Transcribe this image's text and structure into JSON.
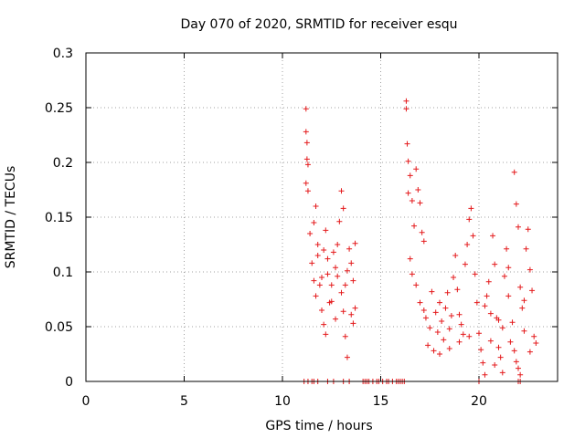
{
  "chart_data": {
    "type": "scatter",
    "title": "Day 070 of 2020, SRMTID for receiver esqu",
    "xlabel": "GPS time / hours",
    "ylabel": "SRMTID / TECUs",
    "xlim": [
      0,
      24
    ],
    "ylim": [
      0,
      0.3
    ],
    "x_ticks": [
      0,
      5,
      10,
      15,
      20
    ],
    "x_tick_labels": [
      "0",
      "5",
      "10",
      "15",
      "20"
    ],
    "y_ticks": [
      0,
      0.05,
      0.1,
      0.15,
      0.2,
      0.25,
      0.3
    ],
    "y_tick_labels": [
      "0",
      "0.05",
      "0.1",
      "0.15",
      "0.2",
      "0.25",
      "0.3"
    ],
    "grid": true,
    "marker": "+",
    "color": "#e41a1c",
    "series": [
      {
        "name": "SRMTID",
        "points": [
          [
            11.2,
            0.249
          ],
          [
            11.2,
            0.228
          ],
          [
            11.25,
            0.218
          ],
          [
            11.25,
            0.203
          ],
          [
            11.3,
            0.198
          ],
          [
            11.2,
            0.181
          ],
          [
            11.3,
            0.174
          ],
          [
            11.4,
            0.135
          ],
          [
            11.5,
            0.108
          ],
          [
            11.6,
            0.145
          ],
          [
            11.7,
            0.16
          ],
          [
            11.8,
            0.125
          ],
          [
            11.6,
            0.092
          ],
          [
            11.7,
            0.078
          ],
          [
            11.9,
            0.088
          ],
          [
            12.0,
            0.095
          ],
          [
            12.1,
            0.12
          ],
          [
            12.2,
            0.138
          ],
          [
            12.3,
            0.112
          ],
          [
            12.0,
            0.065
          ],
          [
            12.1,
            0.052
          ],
          [
            12.2,
            0.043
          ],
          [
            12.4,
            0.072
          ],
          [
            12.5,
            0.088
          ],
          [
            12.6,
            0.118
          ],
          [
            12.7,
            0.104
          ],
          [
            12.8,
            0.096
          ],
          [
            12.9,
            0.146
          ],
          [
            13.0,
            0.174
          ],
          [
            13.1,
            0.158
          ],
          [
            13.0,
            0.081
          ],
          [
            13.1,
            0.064
          ],
          [
            13.2,
            0.041
          ],
          [
            13.3,
            0.022
          ],
          [
            13.4,
            0.121
          ],
          [
            13.5,
            0.108
          ],
          [
            13.6,
            0.092
          ],
          [
            13.7,
            0.126
          ],
          [
            13.5,
            0.061
          ],
          [
            13.6,
            0.053
          ],
          [
            12.3,
            0.098
          ],
          [
            12.5,
            0.073
          ],
          [
            12.7,
            0.057
          ],
          [
            13.2,
            0.088
          ],
          [
            13.3,
            0.101
          ],
          [
            11.8,
            0.115
          ],
          [
            12.8,
            0.125
          ],
          [
            13.7,
            0.067
          ],
          [
            16.3,
            0.256
          ],
          [
            16.3,
            0.249
          ],
          [
            16.35,
            0.217
          ],
          [
            16.4,
            0.201
          ],
          [
            16.5,
            0.188
          ],
          [
            16.4,
            0.172
          ],
          [
            16.6,
            0.165
          ],
          [
            16.7,
            0.142
          ],
          [
            16.8,
            0.194
          ],
          [
            16.9,
            0.175
          ],
          [
            17.0,
            0.163
          ],
          [
            17.1,
            0.136
          ],
          [
            17.2,
            0.128
          ],
          [
            16.5,
            0.112
          ],
          [
            16.6,
            0.098
          ],
          [
            16.8,
            0.088
          ],
          [
            17.0,
            0.072
          ],
          [
            17.2,
            0.065
          ],
          [
            17.3,
            0.058
          ],
          [
            17.5,
            0.049
          ],
          [
            17.6,
            0.082
          ],
          [
            17.8,
            0.063
          ],
          [
            17.9,
            0.045
          ],
          [
            18.0,
            0.072
          ],
          [
            18.1,
            0.055
          ],
          [
            18.2,
            0.038
          ],
          [
            18.3,
            0.067
          ],
          [
            18.4,
            0.081
          ],
          [
            18.5,
            0.048
          ],
          [
            18.6,
            0.06
          ],
          [
            18.7,
            0.095
          ],
          [
            18.8,
            0.115
          ],
          [
            18.9,
            0.084
          ],
          [
            19.0,
            0.061
          ],
          [
            19.1,
            0.052
          ],
          [
            19.2,
            0.043
          ],
          [
            19.3,
            0.107
          ],
          [
            19.4,
            0.125
          ],
          [
            19.5,
            0.148
          ],
          [
            19.6,
            0.158
          ],
          [
            19.7,
            0.133
          ],
          [
            19.8,
            0.098
          ],
          [
            17.4,
            0.033
          ],
          [
            17.7,
            0.028
          ],
          [
            18.0,
            0.025
          ],
          [
            18.5,
            0.03
          ],
          [
            19.0,
            0.036
          ],
          [
            19.5,
            0.041
          ],
          [
            19.9,
            0.072
          ],
          [
            20.0,
            0.044
          ],
          [
            20.1,
            0.029
          ],
          [
            20.2,
            0.017
          ],
          [
            20.3,
            0.006
          ],
          [
            20.4,
            0.078
          ],
          [
            20.5,
            0.091
          ],
          [
            20.6,
            0.062
          ],
          [
            20.7,
            0.133
          ],
          [
            20.8,
            0.107
          ],
          [
            20.9,
            0.058
          ],
          [
            21.0,
            0.031
          ],
          [
            21.1,
            0.022
          ],
          [
            21.2,
            0.049
          ],
          [
            21.3,
            0.096
          ],
          [
            21.4,
            0.121
          ],
          [
            21.5,
            0.078
          ],
          [
            21.6,
            0.036
          ],
          [
            21.7,
            0.054
          ],
          [
            21.8,
            0.191
          ],
          [
            21.9,
            0.162
          ],
          [
            22.0,
            0.141
          ],
          [
            22.1,
            0.086
          ],
          [
            22.2,
            0.067
          ],
          [
            22.3,
            0.046
          ],
          [
            22.4,
            0.121
          ],
          [
            22.5,
            0.139
          ],
          [
            22.6,
            0.102
          ],
          [
            22.7,
            0.083
          ],
          [
            22.8,
            0.041
          ],
          [
            22.9,
            0.035
          ],
          [
            22.0,
            0.012
          ],
          [
            22.1,
            0.006
          ],
          [
            21.9,
            0.018
          ],
          [
            20.8,
            0.015
          ],
          [
            21.2,
            0.008
          ],
          [
            20.3,
            0.069
          ],
          [
            20.6,
            0.037
          ],
          [
            21.0,
            0.056
          ],
          [
            21.5,
            0.104
          ],
          [
            21.8,
            0.028
          ],
          [
            22.3,
            0.074
          ],
          [
            22.6,
            0.027
          ],
          [
            11.1,
            0
          ],
          [
            11.3,
            0
          ],
          [
            11.5,
            0
          ],
          [
            11.6,
            0
          ],
          [
            11.8,
            0
          ],
          [
            12.3,
            0
          ],
          [
            12.6,
            0
          ],
          [
            13.1,
            0
          ],
          [
            13.4,
            0
          ],
          [
            14.1,
            0
          ],
          [
            14.2,
            0
          ],
          [
            14.3,
            0
          ],
          [
            14.4,
            0
          ],
          [
            14.6,
            0
          ],
          [
            14.8,
            0
          ],
          [
            14.9,
            0
          ],
          [
            15.1,
            0
          ],
          [
            15.3,
            0
          ],
          [
            15.4,
            0
          ],
          [
            15.6,
            0
          ],
          [
            15.8,
            0
          ],
          [
            15.9,
            0
          ],
          [
            16.0,
            0
          ],
          [
            16.1,
            0
          ],
          [
            16.2,
            0
          ],
          [
            20.0,
            0
          ],
          [
            22.0,
            0
          ],
          [
            22.1,
            0
          ]
        ]
      }
    ]
  }
}
